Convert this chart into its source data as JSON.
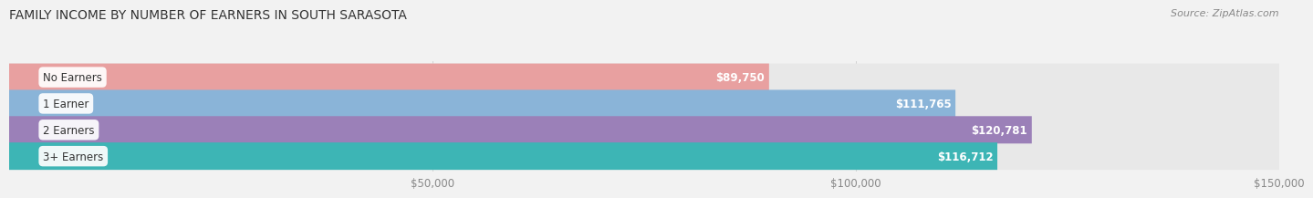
{
  "title": "FAMILY INCOME BY NUMBER OF EARNERS IN SOUTH SARASOTA",
  "source": "Source: ZipAtlas.com",
  "categories": [
    "No Earners",
    "1 Earner",
    "2 Earners",
    "3+ Earners"
  ],
  "values": [
    89750,
    111765,
    120781,
    116712
  ],
  "labels": [
    "$89,750",
    "$111,765",
    "$120,781",
    "$116,712"
  ],
  "bar_colors": [
    "#e8a0a0",
    "#8ab4d8",
    "#9b80b8",
    "#3db5b5"
  ],
  "bg_track_color": "#e8e8e8",
  "xlim": [
    0,
    150000
  ],
  "xticks": [
    50000,
    100000,
    150000
  ],
  "xticklabels": [
    "$50,000",
    "$100,000",
    "$150,000"
  ],
  "title_fontsize": 10,
  "source_fontsize": 8,
  "bar_height": 0.52,
  "fig_width": 14.06,
  "fig_height": 2.33,
  "background_color": "#f2f2f2"
}
